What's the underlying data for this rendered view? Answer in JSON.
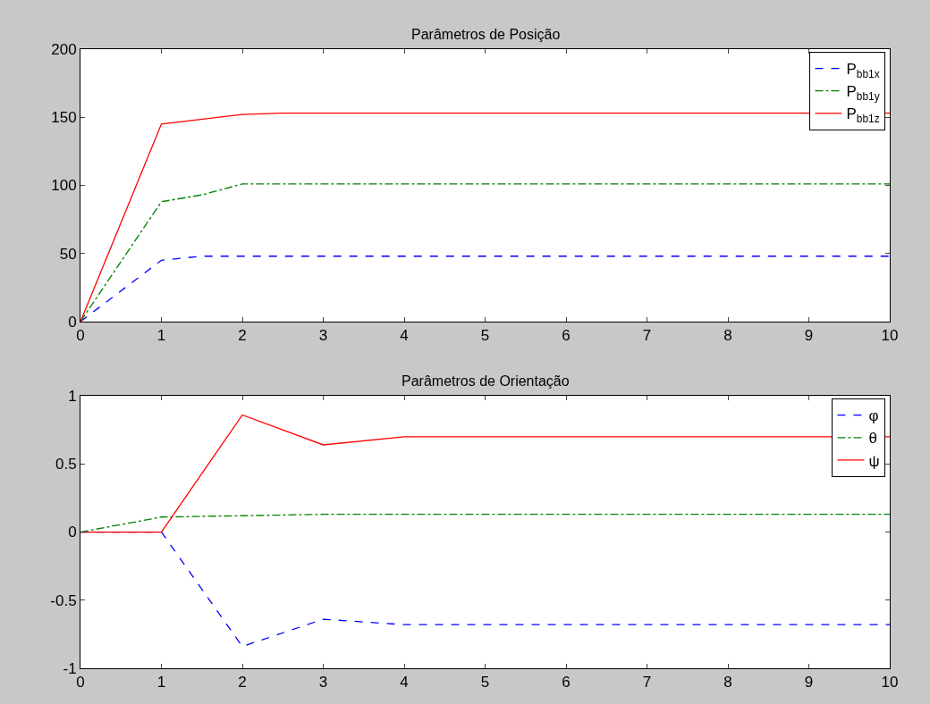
{
  "chart_data": [
    {
      "type": "line",
      "title": "Parâmetros de Posição",
      "xlim": [
        0,
        10
      ],
      "xticks": [
        0,
        1,
        2,
        3,
        4,
        5,
        6,
        7,
        8,
        9,
        10
      ],
      "ylim": [
        0,
        200
      ],
      "yticks": [
        0,
        50,
        100,
        150,
        200
      ],
      "legend": "top right",
      "marker": "none",
      "series": [
        {
          "name": "P$_{bb1x}$",
          "color": "#0000ff",
          "line_style": "dashed",
          "x": [
            0,
            1,
            1.5,
            10
          ],
          "values": [
            0,
            45,
            48,
            48
          ]
        },
        {
          "name": "P$_{bb1y}$",
          "color": "#008000",
          "line_style": "dashdot",
          "x": [
            0,
            1,
            1.5,
            2,
            10
          ],
          "values": [
            0,
            88,
            93,
            101,
            101
          ]
        },
        {
          "name": "P$_{bb1z}$",
          "color": "#ff0000",
          "line_style": "solid",
          "x": [
            0,
            1,
            2,
            2.5,
            10
          ],
          "values": [
            0,
            145,
            152,
            153,
            153
          ]
        }
      ]
    },
    {
      "type": "line",
      "title": "Parâmetros de Orientação",
      "xlim": [
        0,
        10
      ],
      "xticks": [
        0,
        1,
        2,
        3,
        4,
        5,
        6,
        7,
        8,
        9,
        10
      ],
      "ylim": [
        -1,
        1
      ],
      "yticks": [
        -1,
        -0.5,
        0,
        0.5,
        1
      ],
      "legend": "top right",
      "marker": "none",
      "series": [
        {
          "name": "φ",
          "color": "#0000ff",
          "line_style": "dashed",
          "x": [
            0,
            1,
            2,
            3,
            4,
            10
          ],
          "values": [
            0,
            0,
            -0.84,
            -0.64,
            -0.68,
            -0.68
          ]
        },
        {
          "name": "θ",
          "color": "#008000",
          "line_style": "dashdot",
          "x": [
            0,
            1,
            2,
            3,
            10
          ],
          "values": [
            0,
            0.11,
            0.12,
            0.13,
            0.13
          ]
        },
        {
          "name": "ψ",
          "color": "#ff0000",
          "line_style": "solid",
          "x": [
            0,
            1,
            2,
            3,
            4,
            10
          ],
          "values": [
            0,
            0,
            0.86,
            0.64,
            0.7,
            0.7
          ]
        }
      ]
    }
  ]
}
